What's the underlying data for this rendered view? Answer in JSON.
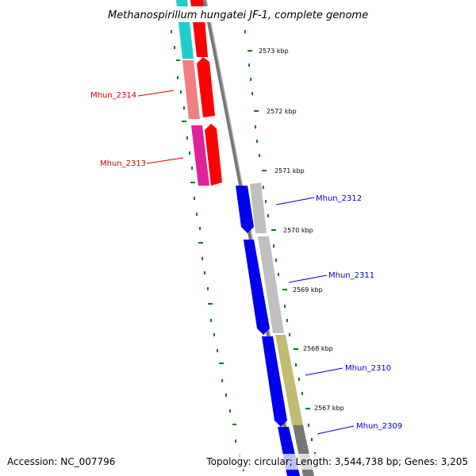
{
  "title": "Methanospirillum hungatei JF-1, complete genome",
  "footer": {
    "accession": "Accession: NC_007796",
    "summary": "Topology: circular; Length: 3,544,738 bp; Genes: 3,205"
  },
  "kbp_labels": [
    "2573 kbp",
    "2572 kbp",
    "2571 kbp",
    "2570 kbp",
    "2569 kbp",
    "2568 kbp",
    "2567 kbp"
  ],
  "genes": [
    {
      "id": "Mhun_2314",
      "strand": "top",
      "color": "#f08080"
    },
    {
      "id": "Mhun_2313",
      "strand": "top",
      "color": "#e0229a"
    },
    {
      "id": "Mhun_2312",
      "strand": "bottom",
      "color": "#0000ee"
    },
    {
      "id": "Mhun_2311",
      "strand": "bottom",
      "color": "#0000ee"
    },
    {
      "id": "Mhun_2310",
      "strand": "bottom",
      "color": "#0000ee"
    },
    {
      "id": "Mhun_2309",
      "strand": "bottom",
      "color": "#0000ee"
    }
  ],
  "colors": {
    "top_strand_label": "#cc0000",
    "bottom_strand_label": "#0000cc",
    "tick": "#008000",
    "backbone": "#777777",
    "cyan_gene": "#22cccc",
    "red_gene": "#ff0000",
    "grey_gene": "#c0c0c0",
    "olive_gene": "#c2bb72",
    "dark_grey_gene": "#777777"
  }
}
